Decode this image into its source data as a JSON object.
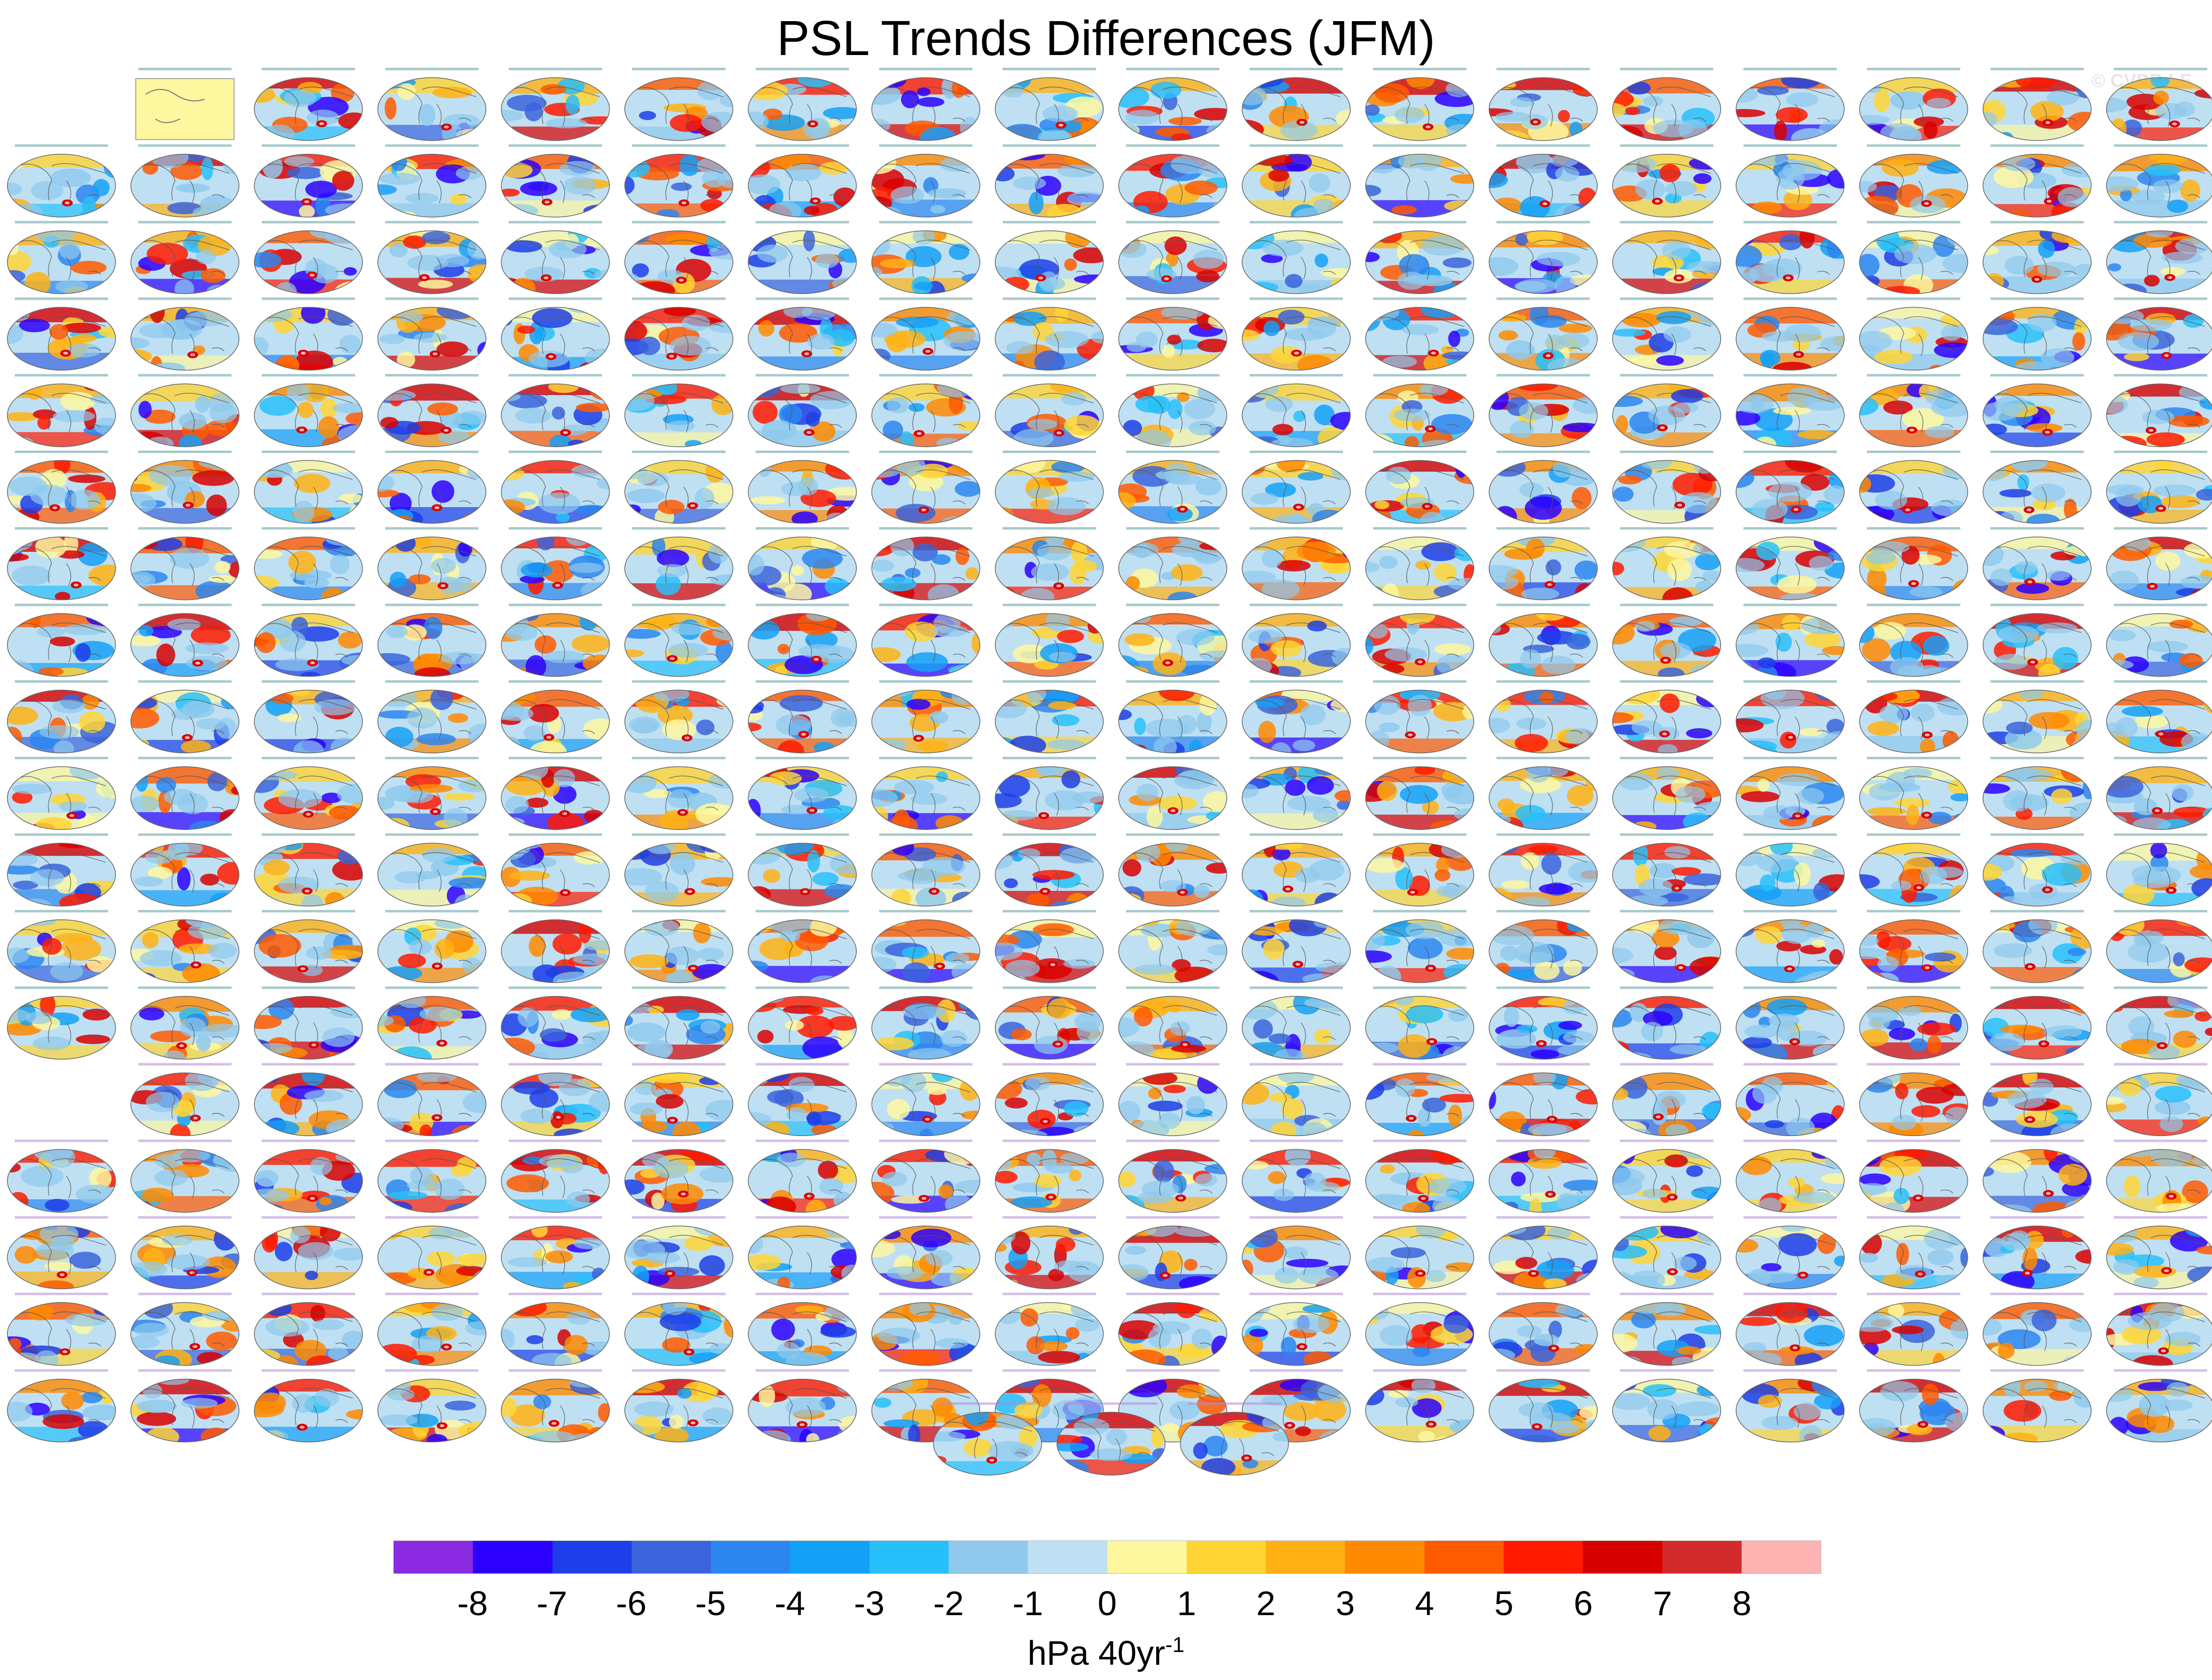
{
  "title": "PSL Trends Differences (JFM)",
  "watermark": "© CVDP-LE",
  "colorbar": {
    "ticks": [
      "-8",
      "-7",
      "-6",
      "-5",
      "-4",
      "-3",
      "-2",
      "-1",
      "0",
      "1",
      "2",
      "3",
      "4",
      "5",
      "6",
      "7",
      "8"
    ],
    "colors": [
      "#8a2be2",
      "#2b00ff",
      "#1d3ee8",
      "#3b64dc",
      "#2b86f0",
      "#15a0f7",
      "#28c0fa",
      "#8fc9ec",
      "#bfe0f3",
      "#fdf7a0",
      "#ffd535",
      "#ffb114",
      "#ff8a00",
      "#ff5a00",
      "#ff1a00",
      "#d90000",
      "#d32b2b",
      "#ffb3b3"
    ],
    "units": "hPa 40yr",
    "units_exponent": "-1"
  },
  "panels": {
    "rows": [
      {
        "first_col": 1,
        "count": 17
      },
      {
        "first_col": 0,
        "count": 18
      },
      {
        "first_col": 0,
        "count": 18
      },
      {
        "first_col": 0,
        "count": 18
      },
      {
        "first_col": 0,
        "count": 18
      },
      {
        "first_col": 0,
        "count": 18
      },
      {
        "first_col": 0,
        "count": 18
      },
      {
        "first_col": 0,
        "count": 18
      },
      {
        "first_col": 0,
        "count": 18
      },
      {
        "first_col": 0,
        "count": 18
      },
      {
        "first_col": 0,
        "count": 18
      },
      {
        "first_col": 0,
        "count": 18
      },
      {
        "first_col": 0,
        "count": 18
      },
      {
        "first_col": 1,
        "count": 17
      },
      {
        "first_col": 0,
        "count": 18
      },
      {
        "first_col": 0,
        "count": 18
      },
      {
        "first_col": 0,
        "count": 18
      },
      {
        "first_col": 0,
        "count": 18
      },
      {
        "first_col": 7.5,
        "count": 3
      }
    ],
    "observation_panel": {
      "row": 0,
      "col": 1,
      "fill": "#fdf7a0"
    }
  }
}
